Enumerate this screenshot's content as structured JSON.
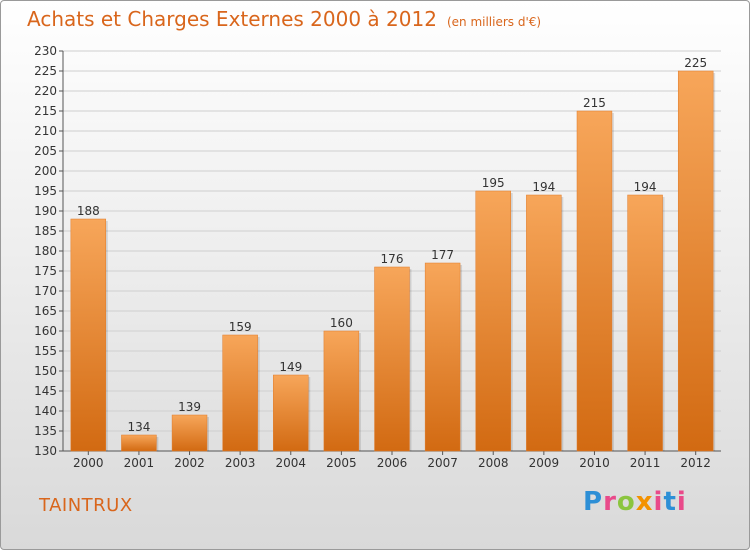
{
  "header": {
    "title": "Achats et Charges Externes 2000 à 2012",
    "unit": "(en milliers d'€)"
  },
  "footer": {
    "commune": "TAINTRUX",
    "logo": "Proxiti"
  },
  "colors": {
    "bar_top": "#f7a65a",
    "bar_bottom": "#d26a12",
    "title": "#d9661c"
  },
  "chart_data": {
    "type": "bar",
    "title": "Achats et Charges Externes 2000 à 2012",
    "subtitle": "(en milliers d'€)",
    "xlabel": "",
    "ylabel": "",
    "categories": [
      "2000",
      "2001",
      "2002",
      "2003",
      "2004",
      "2005",
      "2006",
      "2007",
      "2008",
      "2009",
      "2010",
      "2011",
      "2012"
    ],
    "values": [
      188,
      134,
      139,
      159,
      149,
      160,
      176,
      177,
      195,
      194,
      215,
      194,
      225
    ],
    "ylim": [
      130,
      230
    ],
    "yticks": [
      130,
      135,
      140,
      145,
      150,
      155,
      160,
      165,
      170,
      175,
      180,
      185,
      190,
      195,
      200,
      205,
      210,
      215,
      220,
      225,
      230
    ],
    "grid": true,
    "legend": "none"
  }
}
